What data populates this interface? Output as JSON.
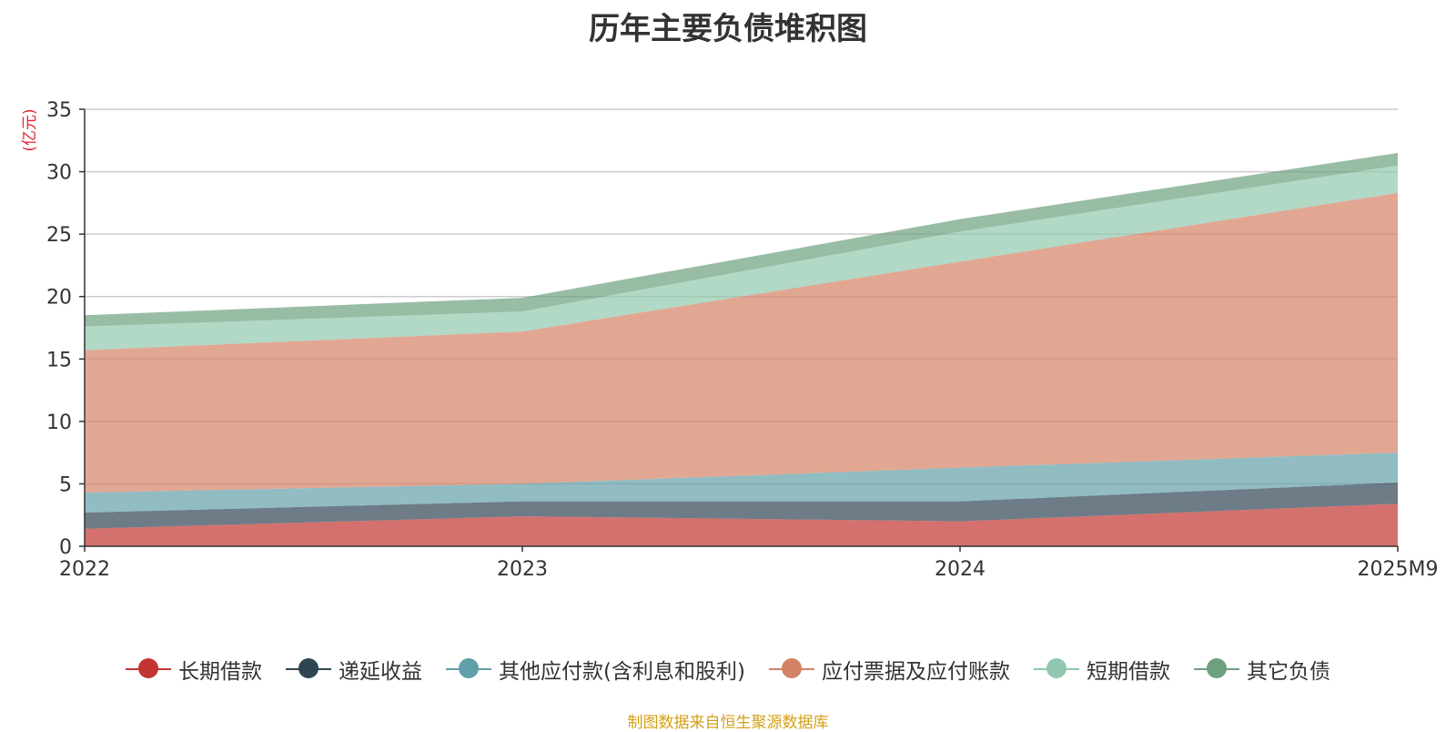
{
  "chart_data": {
    "type": "area",
    "stacked": true,
    "title": "历年主要负债堆积图",
    "unit": "(亿元)",
    "categories": [
      "2022",
      "2023",
      "2024",
      "2025M9"
    ],
    "ylim": [
      0,
      35
    ],
    "yticks": [
      0,
      5,
      10,
      15,
      20,
      25,
      30,
      35
    ],
    "grid": true,
    "legend_position": "bottom",
    "series": [
      {
        "name": "长期借款",
        "color": "#c23531",
        "values": [
          1.4,
          2.4,
          2.0,
          3.4
        ]
      },
      {
        "name": "递延收益",
        "color": "#2f4554",
        "values": [
          1.3,
          1.2,
          1.6,
          1.7
        ]
      },
      {
        "name": "其他应付款(含利息和股利)",
        "color": "#61a0a8",
        "values": [
          1.6,
          1.4,
          2.7,
          2.4
        ]
      },
      {
        "name": "应付票据及应付账款",
        "color": "#d48265",
        "values": [
          11.4,
          12.2,
          16.5,
          20.8
        ]
      },
      {
        "name": "短期借款",
        "color": "#91c7ae",
        "values": [
          1.9,
          1.6,
          2.4,
          2.2
        ]
      },
      {
        "name": "其它负债",
        "color": "#6e9f7f",
        "values": [
          0.9,
          1.1,
          1.0,
          1.0
        ]
      }
    ]
  },
  "source_note": "制图数据来自恒生聚源数据库"
}
